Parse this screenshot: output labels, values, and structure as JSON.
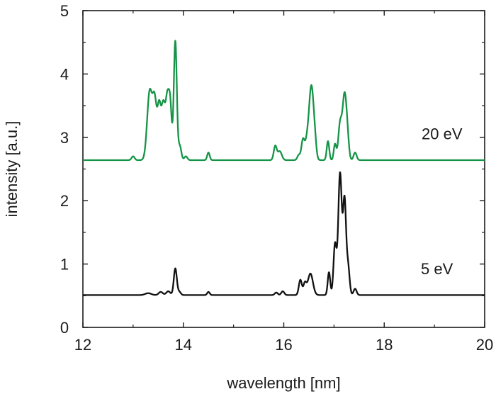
{
  "chart_data": {
    "type": "line",
    "title": "",
    "xlabel": "wavelength [nm]",
    "ylabel": "intensity [a.u.]",
    "xlim": [
      12,
      20
    ],
    "ylim": [
      0,
      5
    ],
    "xticks": [
      12,
      14,
      16,
      18,
      20
    ],
    "yticks": [
      0,
      1,
      2,
      3,
      4,
      5
    ],
    "grid": false,
    "legend": "none",
    "series": [
      {
        "name": "20 eV",
        "color": "#159447",
        "baseline": 2.64,
        "peaks": [
          [
            13.0,
            0.06,
            0.03
          ],
          [
            13.33,
            1.08,
            0.05
          ],
          [
            13.43,
            0.88,
            0.04
          ],
          [
            13.52,
            0.82,
            0.035
          ],
          [
            13.6,
            0.82,
            0.035
          ],
          [
            13.68,
            0.93,
            0.035
          ],
          [
            13.74,
            0.78,
            0.03
          ],
          [
            13.84,
            1.88,
            0.03
          ],
          [
            13.93,
            0.22,
            0.03
          ],
          [
            14.05,
            0.06,
            0.03
          ],
          [
            14.5,
            0.12,
            0.025
          ],
          [
            15.83,
            0.22,
            0.03
          ],
          [
            15.92,
            0.14,
            0.04
          ],
          [
            16.3,
            0.08,
            0.03
          ],
          [
            16.38,
            0.3,
            0.03
          ],
          [
            16.46,
            0.28,
            0.04
          ],
          [
            16.55,
            1.15,
            0.045
          ],
          [
            16.62,
            0.2,
            0.03
          ],
          [
            16.88,
            0.3,
            0.025
          ],
          [
            17.02,
            0.25,
            0.025
          ],
          [
            17.12,
            0.55,
            0.035
          ],
          [
            17.21,
            1.02,
            0.04
          ],
          [
            17.27,
            0.25,
            0.03
          ],
          [
            17.42,
            0.12,
            0.03
          ]
        ]
      },
      {
        "name": "5 eV",
        "color": "#111111",
        "baseline": 0.51,
        "peaks": [
          [
            13.3,
            0.03,
            0.06
          ],
          [
            13.55,
            0.05,
            0.04
          ],
          [
            13.7,
            0.06,
            0.04
          ],
          [
            13.84,
            0.42,
            0.03
          ],
          [
            13.92,
            0.05,
            0.03
          ],
          [
            14.5,
            0.05,
            0.025
          ],
          [
            15.85,
            0.04,
            0.03
          ],
          [
            15.98,
            0.06,
            0.03
          ],
          [
            16.33,
            0.24,
            0.03
          ],
          [
            16.42,
            0.18,
            0.03
          ],
          [
            16.53,
            0.34,
            0.05
          ],
          [
            16.9,
            0.36,
            0.025
          ],
          [
            17.02,
            0.8,
            0.03
          ],
          [
            17.12,
            1.92,
            0.035
          ],
          [
            17.21,
            1.47,
            0.03
          ],
          [
            17.28,
            0.45,
            0.03
          ],
          [
            17.42,
            0.1,
            0.03
          ]
        ]
      }
    ],
    "annotations": [
      {
        "text": "20 eV",
        "x": 19.15,
        "y": 2.97
      },
      {
        "text": "5 eV",
        "x": 19.05,
        "y": 0.84
      }
    ]
  }
}
